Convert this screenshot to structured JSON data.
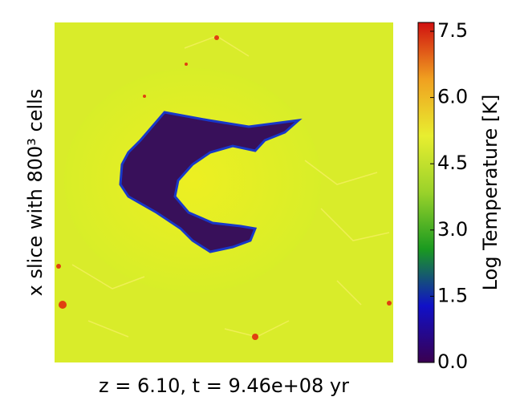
{
  "chart_data": {
    "type": "heatmap",
    "ylabel": "x slice with 800³ cells",
    "xlabel": "z = 6.10, t = 9.46e+08 yr",
    "colorbar": {
      "label": "Log Temperature [K]",
      "lim": [
        0,
        7.7
      ],
      "ticks": [
        {
          "value": 0,
          "label": "0.0"
        },
        {
          "value": 1.5,
          "label": "1.5"
        },
        {
          "value": 3,
          "label": "3.0"
        },
        {
          "value": 4.5,
          "label": "4.5"
        },
        {
          "value": 6,
          "label": "6.0"
        },
        {
          "value": 7.5,
          "label": "7.5"
        }
      ],
      "colormap": [
        "#3a0050",
        "#1010c8",
        "#1a9a20",
        "#9ad22a",
        "#e8ee30",
        "#f0a020",
        "#d01010"
      ]
    }
  }
}
